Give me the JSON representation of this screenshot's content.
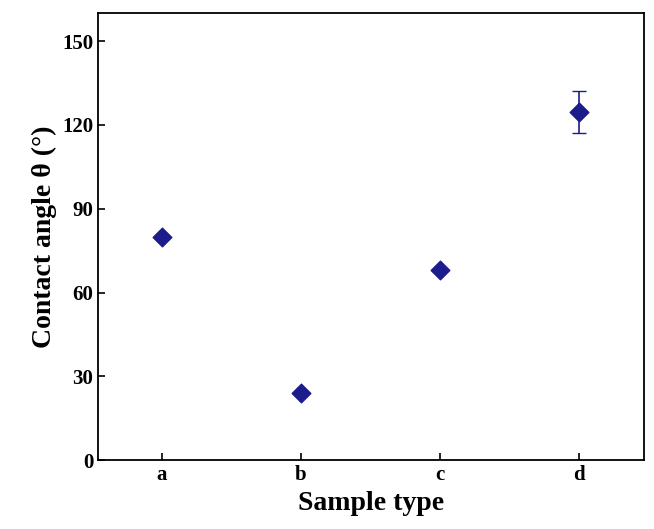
{
  "chart_data": {
    "type": "scatter",
    "x_label": "Sample type",
    "y_label": "Contact angle θ (°)",
    "categories": [
      "a",
      "b",
      "c",
      "d"
    ],
    "values": [
      80,
      24,
      68,
      124.5
    ],
    "error": [
      null,
      null,
      null,
      7.5
    ],
    "color": "#1c1c8a",
    "marker": "diamond",
    "ylim": [
      0,
      160
    ],
    "yticks": [
      0,
      30,
      60,
      90,
      120,
      150
    ],
    "grid": false
  }
}
